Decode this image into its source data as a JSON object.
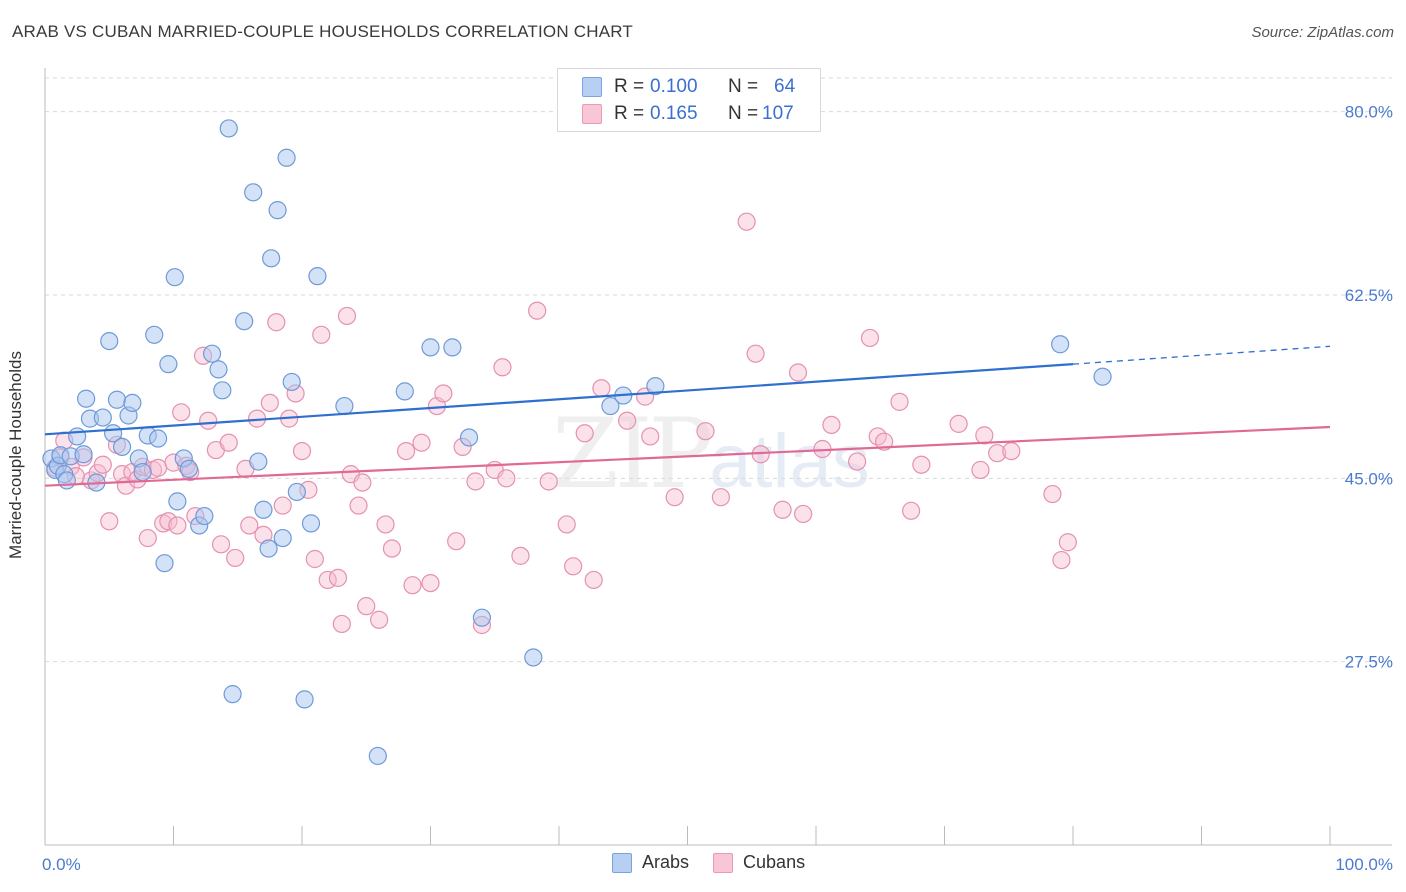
{
  "title": "ARAB VS CUBAN MARRIED-COUPLE HOUSEHOLDS CORRELATION CHART",
  "source": "Source: ZipAtlas.com",
  "watermark": {
    "zip": "ZIP",
    "atlas": "atlas"
  },
  "legend": {
    "rows": [
      {
        "r_label": "R =",
        "r_value": "0.100",
        "n_label": "N =",
        "n_value": "64"
      },
      {
        "r_label": "R =",
        "r_value": "0.165",
        "n_label": "N =",
        "n_value": "107"
      }
    ]
  },
  "bottom_legend": [
    "Arabs",
    "Cubans"
  ],
  "colors": {
    "arabs_fill": "#a9c6f0",
    "arabs_stroke": "#6f9ad8",
    "arabs_line": "#2e6fcf",
    "cubans_fill": "#f6bcd0",
    "cubans_stroke": "#e591b0",
    "cubans_line": "#e06a95",
    "grid": "#d9d9d9",
    "tick_label": "#4a7bd0"
  },
  "chart_data": {
    "type": "scatter",
    "title": "ARAB VS CUBAN MARRIED-COUPLE HOUSEHOLDS CORRELATION CHART",
    "xlabel": "",
    "ylabel": "Married-couple Households",
    "xlim": [
      0,
      100
    ],
    "ylim": [
      10,
      83.5
    ],
    "x_tick_labels": [
      "0.0%",
      "100.0%"
    ],
    "y_ticks": [
      27.5,
      45.0,
      62.5,
      80.0
    ],
    "y_tick_labels": [
      "27.5%",
      "45.0%",
      "62.5%",
      "80.0%"
    ],
    "series": [
      {
        "name": "Arabs",
        "r": 0.1,
        "n": 64,
        "trend": {
          "x0": 0,
          "y0": 49.2,
          "x1": 80,
          "y1": 55.9,
          "dash_to_x": 100,
          "dash_to_y": 57.6
        },
        "points": [
          [
            0.5,
            46.9
          ],
          [
            0.8,
            45.8
          ],
          [
            1.0,
            46.2
          ],
          [
            1.2,
            47.2
          ],
          [
            1.5,
            45.4
          ],
          [
            1.7,
            44.8
          ],
          [
            2.0,
            47.1
          ],
          [
            2.5,
            49.0
          ],
          [
            3.0,
            47.3
          ],
          [
            3.2,
            52.6
          ],
          [
            3.5,
            50.7
          ],
          [
            4.0,
            44.6
          ],
          [
            4.5,
            50.8
          ],
          [
            5.0,
            58.1
          ],
          [
            5.3,
            49.3
          ],
          [
            5.6,
            52.5
          ],
          [
            6.0,
            48.0
          ],
          [
            6.5,
            51.0
          ],
          [
            6.8,
            52.2
          ],
          [
            7.3,
            46.9
          ],
          [
            7.6,
            45.6
          ],
          [
            8.0,
            49.1
          ],
          [
            8.5,
            58.7
          ],
          [
            8.8,
            48.8
          ],
          [
            9.3,
            36.9
          ],
          [
            9.6,
            55.9
          ],
          [
            10.1,
            64.2
          ],
          [
            10.3,
            42.8
          ],
          [
            10.8,
            46.9
          ],
          [
            11.2,
            45.9
          ],
          [
            12.0,
            40.5
          ],
          [
            12.4,
            41.4
          ],
          [
            13.0,
            56.9
          ],
          [
            13.5,
            55.4
          ],
          [
            13.8,
            53.4
          ],
          [
            14.3,
            78.4
          ],
          [
            14.6,
            24.4
          ],
          [
            15.5,
            60.0
          ],
          [
            16.2,
            72.3
          ],
          [
            16.6,
            46.6
          ],
          [
            17.0,
            42.0
          ],
          [
            17.4,
            38.3
          ],
          [
            17.6,
            66.0
          ],
          [
            18.1,
            70.6
          ],
          [
            18.5,
            39.3
          ],
          [
            18.8,
            75.6
          ],
          [
            19.2,
            54.2
          ],
          [
            19.6,
            43.7
          ],
          [
            20.2,
            23.9
          ],
          [
            20.7,
            40.7
          ],
          [
            21.2,
            64.3
          ],
          [
            23.3,
            51.9
          ],
          [
            25.9,
            18.5
          ],
          [
            28.0,
            53.3
          ],
          [
            30.0,
            57.5
          ],
          [
            31.7,
            57.5
          ],
          [
            33.0,
            48.9
          ],
          [
            34.0,
            31.7
          ],
          [
            38.0,
            27.9
          ],
          [
            44.0,
            51.9
          ],
          [
            45.0,
            52.9
          ],
          [
            47.5,
            53.8
          ],
          [
            79.0,
            57.8
          ],
          [
            82.3,
            54.7
          ]
        ]
      },
      {
        "name": "Cubans",
        "r": 0.165,
        "n": 107,
        "trend": {
          "x0": 0,
          "y0": 44.3,
          "x1": 100,
          "y1": 49.9
        },
        "points": [
          [
            0.8,
            46.0
          ],
          [
            1.2,
            47.0
          ],
          [
            1.5,
            48.6
          ],
          [
            2.0,
            46.1
          ],
          [
            2.4,
            45.2
          ],
          [
            3.0,
            47.0
          ],
          [
            3.6,
            44.8
          ],
          [
            4.1,
            45.5
          ],
          [
            4.5,
            46.3
          ],
          [
            5.0,
            40.9
          ],
          [
            5.6,
            48.2
          ],
          [
            6.0,
            45.4
          ],
          [
            6.3,
            44.3
          ],
          [
            6.8,
            45.6
          ],
          [
            7.2,
            44.9
          ],
          [
            7.6,
            46.1
          ],
          [
            8.0,
            39.3
          ],
          [
            8.4,
            45.8
          ],
          [
            8.8,
            46.0
          ],
          [
            9.2,
            40.7
          ],
          [
            9.6,
            40.9
          ],
          [
            10.0,
            46.5
          ],
          [
            10.3,
            40.5
          ],
          [
            10.6,
            51.3
          ],
          [
            11.0,
            46.2
          ],
          [
            11.3,
            45.6
          ],
          [
            11.7,
            41.4
          ],
          [
            12.3,
            56.7
          ],
          [
            12.7,
            50.5
          ],
          [
            13.3,
            47.7
          ],
          [
            13.7,
            38.7
          ],
          [
            14.3,
            48.4
          ],
          [
            14.8,
            37.4
          ],
          [
            15.6,
            45.9
          ],
          [
            15.9,
            40.5
          ],
          [
            16.5,
            50.7
          ],
          [
            17.0,
            39.6
          ],
          [
            17.5,
            52.2
          ],
          [
            18.0,
            59.9
          ],
          [
            18.5,
            42.4
          ],
          [
            19.0,
            50.7
          ],
          [
            19.5,
            53.1
          ],
          [
            20.0,
            47.6
          ],
          [
            20.5,
            43.9
          ],
          [
            21.0,
            37.3
          ],
          [
            21.5,
            58.7
          ],
          [
            22.0,
            35.3
          ],
          [
            22.8,
            35.5
          ],
          [
            23.1,
            31.1
          ],
          [
            23.5,
            60.5
          ],
          [
            23.8,
            45.4
          ],
          [
            24.4,
            42.4
          ],
          [
            24.7,
            44.6
          ],
          [
            25.0,
            32.8
          ],
          [
            26.0,
            31.5
          ],
          [
            26.5,
            40.6
          ],
          [
            27.0,
            38.3
          ],
          [
            28.1,
            47.6
          ],
          [
            28.6,
            34.8
          ],
          [
            29.3,
            48.4
          ],
          [
            30.0,
            35.0
          ],
          [
            30.5,
            51.9
          ],
          [
            31.0,
            53.1
          ],
          [
            32.0,
            39.0
          ],
          [
            32.5,
            48.0
          ],
          [
            33.5,
            44.7
          ],
          [
            34.0,
            31.0
          ],
          [
            35.0,
            45.8
          ],
          [
            35.6,
            55.6
          ],
          [
            35.9,
            45.0
          ],
          [
            37.0,
            37.6
          ],
          [
            38.3,
            61.0
          ],
          [
            39.2,
            44.7
          ],
          [
            40.6,
            40.6
          ],
          [
            41.1,
            36.6
          ],
          [
            42.0,
            49.3
          ],
          [
            42.7,
            35.3
          ],
          [
            43.3,
            53.6
          ],
          [
            45.3,
            50.5
          ],
          [
            46.7,
            52.8
          ],
          [
            47.1,
            49.0
          ],
          [
            49.0,
            43.2
          ],
          [
            51.4,
            49.5
          ],
          [
            52.6,
            43.2
          ],
          [
            54.6,
            69.5
          ],
          [
            55.3,
            56.9
          ],
          [
            55.7,
            47.3
          ],
          [
            57.4,
            42.0
          ],
          [
            58.6,
            55.1
          ],
          [
            59.0,
            41.6
          ],
          [
            60.5,
            47.8
          ],
          [
            61.2,
            50.1
          ],
          [
            63.2,
            46.6
          ],
          [
            64.2,
            58.4
          ],
          [
            64.8,
            49.0
          ],
          [
            65.3,
            48.5
          ],
          [
            66.5,
            52.3
          ],
          [
            67.4,
            41.9
          ],
          [
            68.2,
            46.3
          ],
          [
            71.1,
            50.2
          ],
          [
            72.8,
            45.8
          ],
          [
            73.1,
            49.1
          ],
          [
            74.1,
            47.4
          ],
          [
            75.2,
            47.6
          ],
          [
            78.4,
            43.5
          ],
          [
            79.1,
            37.2
          ],
          [
            79.6,
            38.9
          ]
        ]
      }
    ]
  }
}
